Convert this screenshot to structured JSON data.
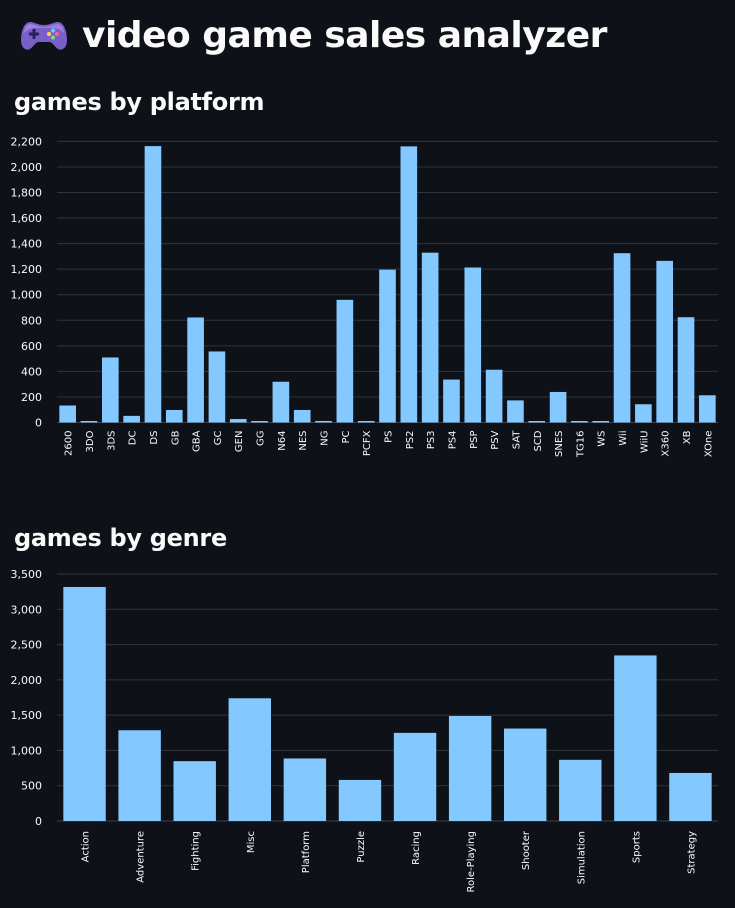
{
  "app": {
    "title": "video game sales analyzer",
    "icon": "game-controller-icon",
    "accent": "#83c9ff",
    "background": "#0e1117"
  },
  "chart_data": [
    {
      "type": "bar",
      "title": "games by platform",
      "xlabel": "",
      "ylabel": "",
      "ylim": [
        0,
        2250
      ],
      "yticks": [
        0,
        200,
        400,
        600,
        800,
        1000,
        1200,
        1400,
        1600,
        1800,
        2000,
        2200
      ],
      "ytick_labels": [
        "0",
        "200",
        "400",
        "600",
        "800",
        "1,000",
        "1,200",
        "1,400",
        "1,600",
        "1,800",
        "2,000",
        "2,200"
      ],
      "categories": [
        "2600",
        "3DO",
        "3DS",
        "DC",
        "DS",
        "GB",
        "GBA",
        "GC",
        "GEN",
        "GG",
        "N64",
        "NES",
        "NG",
        "PC",
        "PCFX",
        "PS",
        "PS2",
        "PS3",
        "PS4",
        "PSP",
        "PSV",
        "SAT",
        "SCD",
        "SNES",
        "TG16",
        "WS",
        "Wii",
        "WiiU",
        "X360",
        "XB",
        "XOne"
      ],
      "values": [
        133,
        3,
        509,
        52,
        2163,
        98,
        822,
        556,
        27,
        1,
        319,
        98,
        12,
        960,
        1,
        1196,
        2161,
        1329,
        336,
        1213,
        413,
        173,
        6,
        239,
        2,
        6,
        1325,
        143,
        1265,
        824,
        213
      ],
      "bar_color": "#83c9ff",
      "grid": true
    },
    {
      "type": "bar",
      "title": "games by genre",
      "xlabel": "",
      "ylabel": "",
      "ylim": [
        0,
        3500
      ],
      "yticks": [
        0,
        500,
        1000,
        1500,
        2000,
        2500,
        3000,
        3500
      ],
      "ytick_labels": [
        "0",
        "500",
        "1,000",
        "1,500",
        "2,000",
        "2,500",
        "3,000",
        "3,500"
      ],
      "categories": [
        "Action",
        "Adventure",
        "Fighting",
        "Misc",
        "Platform",
        "Puzzle",
        "Racing",
        "Role-Playing",
        "Shooter",
        "Simulation",
        "Sports",
        "Strategy"
      ],
      "values": [
        3316,
        1286,
        848,
        1739,
        886,
        582,
        1249,
        1488,
        1310,
        867,
        2346,
        681
      ],
      "bar_color": "#83c9ff",
      "grid": true
    }
  ]
}
